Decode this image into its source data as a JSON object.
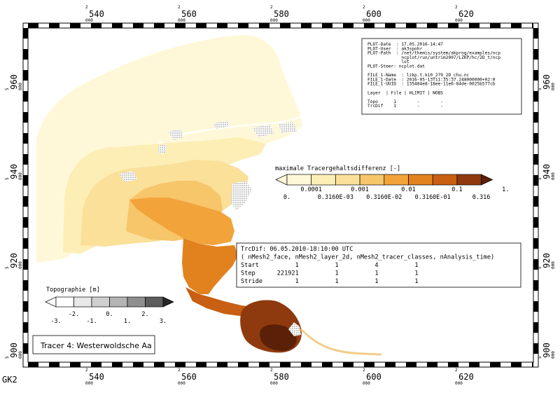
{
  "map": {
    "projection_label": "GK2",
    "x_ticks": [
      {
        "prefix": "2",
        "value": "540",
        "suffix": "000"
      },
      {
        "prefix": "2",
        "value": "560",
        "suffix": "000"
      },
      {
        "prefix": "2",
        "value": "580",
        "suffix": "000"
      },
      {
        "prefix": "2",
        "value": "600",
        "suffix": "000"
      },
      {
        "prefix": "2",
        "value": "620",
        "suffix": "000"
      }
    ],
    "y_ticks": [
      {
        "prefix": "5",
        "value": "960",
        "suffix": "000"
      },
      {
        "prefix": "5",
        "value": "940",
        "suffix": "000"
      },
      {
        "prefix": "5",
        "value": "920",
        "suffix": "000"
      },
      {
        "prefix": "5",
        "value": "900",
        "suffix": "000"
      }
    ],
    "colors": {
      "land_hatch": "#c8c8c8",
      "level0": "#fff8d8",
      "level1": "#fdeeb6",
      "level2": "#fbe09a",
      "level3": "#f7c56a",
      "level4": "#f2a33a",
      "level5": "#e2821e",
      "level6": "#c85f12",
      "level7": "#8e3a0e",
      "level8": "#5a2008"
    }
  },
  "info_box": {
    "lines": [
      "PLOT-Date  : 17.05.2016-14:47",
      "PLOT-User  : ak3spohr",
      "PLOT-Path  : /net/themis/system/akprog/examples/ncp",
      "             ncplot/run/untrim2007/LZKP/hc/2D_t/ncp",
      "             lot",
      "PLOT-Steer: ncplot.dat",
      "",
      "FILE_1-Name  : lzkp.t.k10_279_2D_chu.nc",
      "FILE_1-Date  : 2016-05-13T11:35:37.248000000+02:0",
      "FILE_1-UUID  : 135484e8-18ee-11e6-84de-0025b577cb",
      "",
      "Layer  | File | HLIMIT | NOBS",
      "",
      "Topo      1        -        -",
      "TrcDif    1        -        -"
    ]
  },
  "tracer_legend": {
    "title": "maximale Tracergehaltsdifferenz [-]",
    "upper_labels": [
      "0.0001",
      "0.001",
      "0.01",
      "0.1",
      "1."
    ],
    "lower_labels": [
      "0.",
      "0.3160E-03",
      "0.3160E-02",
      "0.3160E-01",
      "0.316"
    ]
  },
  "topo_legend": {
    "title": "Topographie [m]",
    "upper_labels": [
      "-2.",
      "0.",
      "2."
    ],
    "lower_labels": [
      "-3.",
      "-1.",
      "1.",
      "3."
    ],
    "colors": [
      "#ffffff",
      "#e8e8e8",
      "#cfcfcf",
      "#b4b4b4",
      "#8f8f8f",
      "#5c5c5c",
      "#262626"
    ]
  },
  "time_box": {
    "lines": [
      "TrcDif: 06.05.2010-18:10:00 UTC",
      "( nMesh2_face, nMesh2_layer_2d, nMesh2_tracer_classes, nAnalysis_time)",
      "Start          1          1          4          1",
      "Step      221921          1          1          1",
      "Stride         1          1          1          1"
    ]
  },
  "tracer_label": "Tracer 4: Westerwoldsche Aa"
}
